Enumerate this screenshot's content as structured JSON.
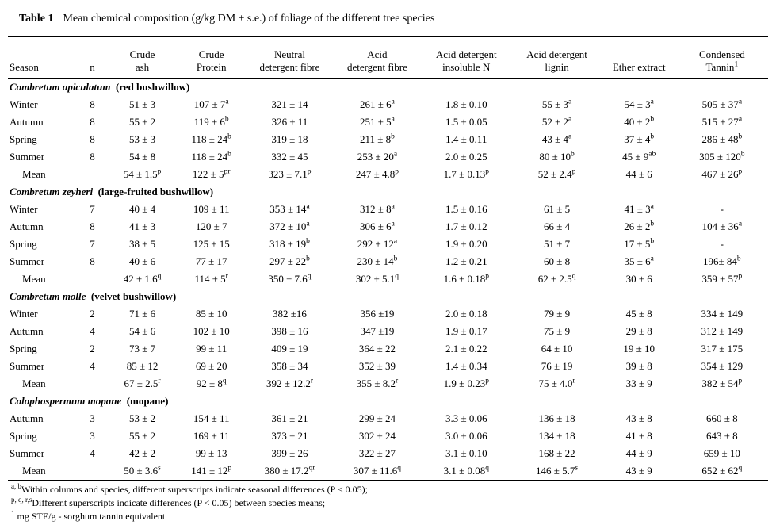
{
  "page": {
    "title_label": "Table 1",
    "title_caption": "Mean chemical composition (g/kg DM ± s.e.) of foliage of the different tree species"
  },
  "table": {
    "headers": [
      "Season",
      "n",
      "Crude\nash",
      "Crude\nProtein",
      "Neutral\ndetergent fibre",
      "Acid\ndetergent fibre",
      "Acid detergent\ninsoluble N",
      "Acid detergent\nlignin",
      "Ether extract",
      "Condensed\nTannin^1"
    ],
    "sections": [
      {
        "species": "Combretum apiculatum",
        "common": "(red bushwillow)",
        "rows": [
          {
            "season": "Winter",
            "n": "8",
            "values": [
              "51 ± 3",
              "107 ± 7^a",
              "321 ± 14",
              "261 ± 6^a",
              "1.8 ± 0.10",
              "55 ± 3^a",
              "54 ± 3^a",
              "505 ± 37^a"
            ]
          },
          {
            "season": "Autumn",
            "n": "8",
            "values": [
              "55 ± 2",
              "119 ± 6^b",
              "326 ± 11",
              "251 ± 5^a",
              "1.5 ± 0.05",
              "52 ± 2^a",
              "40 ± 2^b",
              "515 ± 27^a"
            ]
          },
          {
            "season": "Spring",
            "n": "8",
            "values": [
              "53 ± 3",
              "118 ± 24^b",
              "319 ± 18",
              "211 ± 8^b",
              "1.4 ± 0.11",
              "43 ± 4^a",
              "37 ± 4^b",
              "286 ± 48^b"
            ]
          },
          {
            "season": "Summer",
            "n": "8",
            "values": [
              "54 ± 8",
              "118 ± 24^b",
              "332 ± 45",
              "253 ± 20^a",
              "2.0 ± 0.25",
              "80 ± 10^b",
              "45 ± 9^ab",
              "305 ± 120^b"
            ]
          },
          {
            "season": "Mean",
            "n": "",
            "mean": true,
            "values": [
              "54 ± 1.5^p",
              "122 ± 5^pr",
              "323 ± 7.1^p",
              "247 ± 4.8^p",
              "1.7 ± 0.13^p",
              "52 ± 2.4^p",
              "44 ± 6",
              "467 ± 26^p"
            ]
          }
        ]
      },
      {
        "species": "Combretum zeyheri",
        "common": "(large-fruited bushwillow)",
        "rows": [
          {
            "season": "Winter",
            "n": "7",
            "values": [
              "40 ± 4",
              "109 ± 11",
              "353 ± 14^a",
              "312 ± 8^a",
              "1.5 ± 0.16",
              "61 ± 5",
              "41 ± 3^a",
              "-"
            ]
          },
          {
            "season": "Autumn",
            "n": "8",
            "values": [
              "41 ± 3",
              "120 ± 7",
              "372 ± 10^a",
              "306 ± 6^a",
              "1.7 ± 0.12",
              "66 ± 4",
              "26 ± 2^b",
              "104 ± 36^a"
            ]
          },
          {
            "season": "Spring",
            "n": "7",
            "values": [
              "38 ± 5",
              "125 ± 15",
              "318 ± 19^b",
              "292 ± 12^a",
              "1.9 ± 0.20",
              "51 ± 7",
              "17 ± 5^b",
              "-"
            ]
          },
          {
            "season": "Summer",
            "n": "8",
            "values": [
              "40 ± 6",
              "77 ± 17",
              "297 ± 22^b",
              "230 ± 14^b",
              "1.2 ± 0.21",
              "60 ± 8",
              "35 ± 6^a",
              "196± 84^b"
            ]
          },
          {
            "season": "Mean",
            "n": "",
            "mean": true,
            "values": [
              "42 ± 1.6^q",
              "114 ± 5^r",
              "350 ± 7.6^q",
              "302 ± 5.1^q",
              "1.6 ± 0.18^p",
              "62 ± 2.5^q",
              "30 ± 6",
              "359 ± 57^p"
            ]
          }
        ]
      },
      {
        "species": "Combretum molle",
        "common": "(velvet bushwillow)",
        "rows": [
          {
            "season": "Winter",
            "n": "2",
            "values": [
              "71 ± 6",
              "85 ± 10",
              "382 ±16",
              "356 ±19",
              "2.0 ± 0.18",
              "79 ± 9",
              "45 ± 8",
              "334 ± 149"
            ]
          },
          {
            "season": "Autumn",
            "n": "4",
            "values": [
              "54 ± 6",
              "102 ± 10",
              "398 ± 16",
              "347 ±19",
              "1.9 ± 0.17",
              "75 ± 9",
              "29 ± 8",
              "312 ± 149"
            ]
          },
          {
            "season": "Spring",
            "n": "2",
            "values": [
              "73 ± 7",
              "99 ± 11",
              "409 ± 19",
              "364 ± 22",
              "2.1 ± 0.22",
              "64 ± 10",
              "19 ± 10",
              "317 ± 175"
            ]
          },
          {
            "season": "Summer",
            "n": "4",
            "values": [
              "85 ± 12",
              "69 ± 20",
              "358 ± 34",
              "352 ± 39",
              "1.4 ± 0.34",
              "76 ± 19",
              "39 ± 8",
              "354 ± 129"
            ]
          },
          {
            "season": "Mean",
            "n": "",
            "mean": true,
            "values": [
              "67 ± 2.5^r",
              "92 ± 8^q",
              "392 ± 12.2^r",
              "355 ± 8.2^r",
              "1.9 ± 0.23^p",
              "75 ± 4.0^r",
              "33 ± 9",
              "382 ± 54^p"
            ]
          }
        ]
      },
      {
        "species": "Colophospermum mopane",
        "common": "(mopane)",
        "rows": [
          {
            "season": "Autumn",
            "n": "3",
            "values": [
              "53 ± 2",
              "154 ± 11",
              "361 ± 21",
              "299 ± 24",
              "3.3 ± 0.06",
              "136 ± 18",
              "43 ± 8",
              "660 ± 8"
            ]
          },
          {
            "season": "Spring",
            "n": "3",
            "values": [
              "55 ± 2",
              "169 ± 11",
              "373 ± 21",
              "302 ± 24",
              "3.0 ± 0.06",
              "134 ± 18",
              "41 ± 8",
              "643 ± 8"
            ]
          },
          {
            "season": "Summer",
            "n": "4",
            "values": [
              "42 ± 2",
              "99 ± 13",
              "399 ± 26",
              "322 ± 27",
              "3.1 ± 0.10",
              "168 ± 22",
              "44 ± 9",
              "659 ± 10"
            ]
          },
          {
            "season": "Mean",
            "n": "",
            "mean": true,
            "values": [
              "50 ± 3.6^s",
              "141 ± 12^p",
              "380 ± 17.2^qr",
              "307 ± 11.6^q",
              "3.1 ± 0.08^q",
              "146 ± 5.7^s",
              "43 ± 9",
              "652 ± 62^q"
            ]
          }
        ]
      }
    ],
    "footnotes": [
      {
        "sup": "a, b",
        "text": "Within columns and species, different superscripts indicate seasonal differences (P < 0.05);"
      },
      {
        "sup": "p, q, r,s",
        "text": "Different superscripts indicate differences (P < 0.05) between species means;"
      },
      {
        "sup": "1",
        "text": " mg STE/g - sorghum tannin equivalent"
      }
    ]
  }
}
